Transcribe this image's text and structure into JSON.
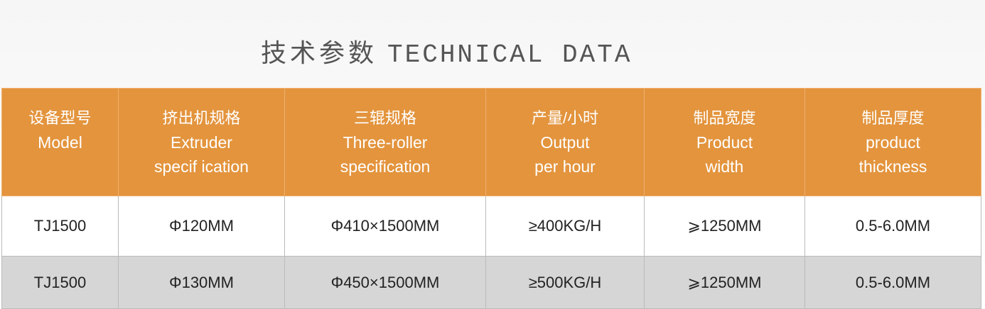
{
  "title": {
    "cn": "技术参数",
    "en": "TECHNICAL DATA"
  },
  "colors": {
    "header_bg": "#e3943d",
    "row_alt_bg": "#d6d6d6"
  },
  "columns": [
    {
      "cn": "设备型号",
      "en1": "Model",
      "en2": ""
    },
    {
      "cn": "挤出机规格",
      "en1": "Extruder",
      "en2": "specif ication"
    },
    {
      "cn": "三辊规格",
      "en1": "Three-roller",
      "en2": "specification"
    },
    {
      "cn": "产量/小时",
      "en1": "Output",
      "en2": "per hour"
    },
    {
      "cn": "制品宽度",
      "en1": "Product",
      "en2": "width"
    },
    {
      "cn": "制品厚度",
      "en1": "product",
      "en2": "thickness"
    }
  ],
  "rows": [
    [
      "TJ1500",
      "Φ120MM",
      "Φ410×1500MM",
      "≥400KG/H",
      "⩾1250MM",
      "0.5-6.0MM"
    ],
    [
      "TJ1500",
      "Φ130MM",
      "Φ450×1500MM",
      "≥500KG/H",
      "⩾1250MM",
      "0.5-6.0MM"
    ]
  ]
}
